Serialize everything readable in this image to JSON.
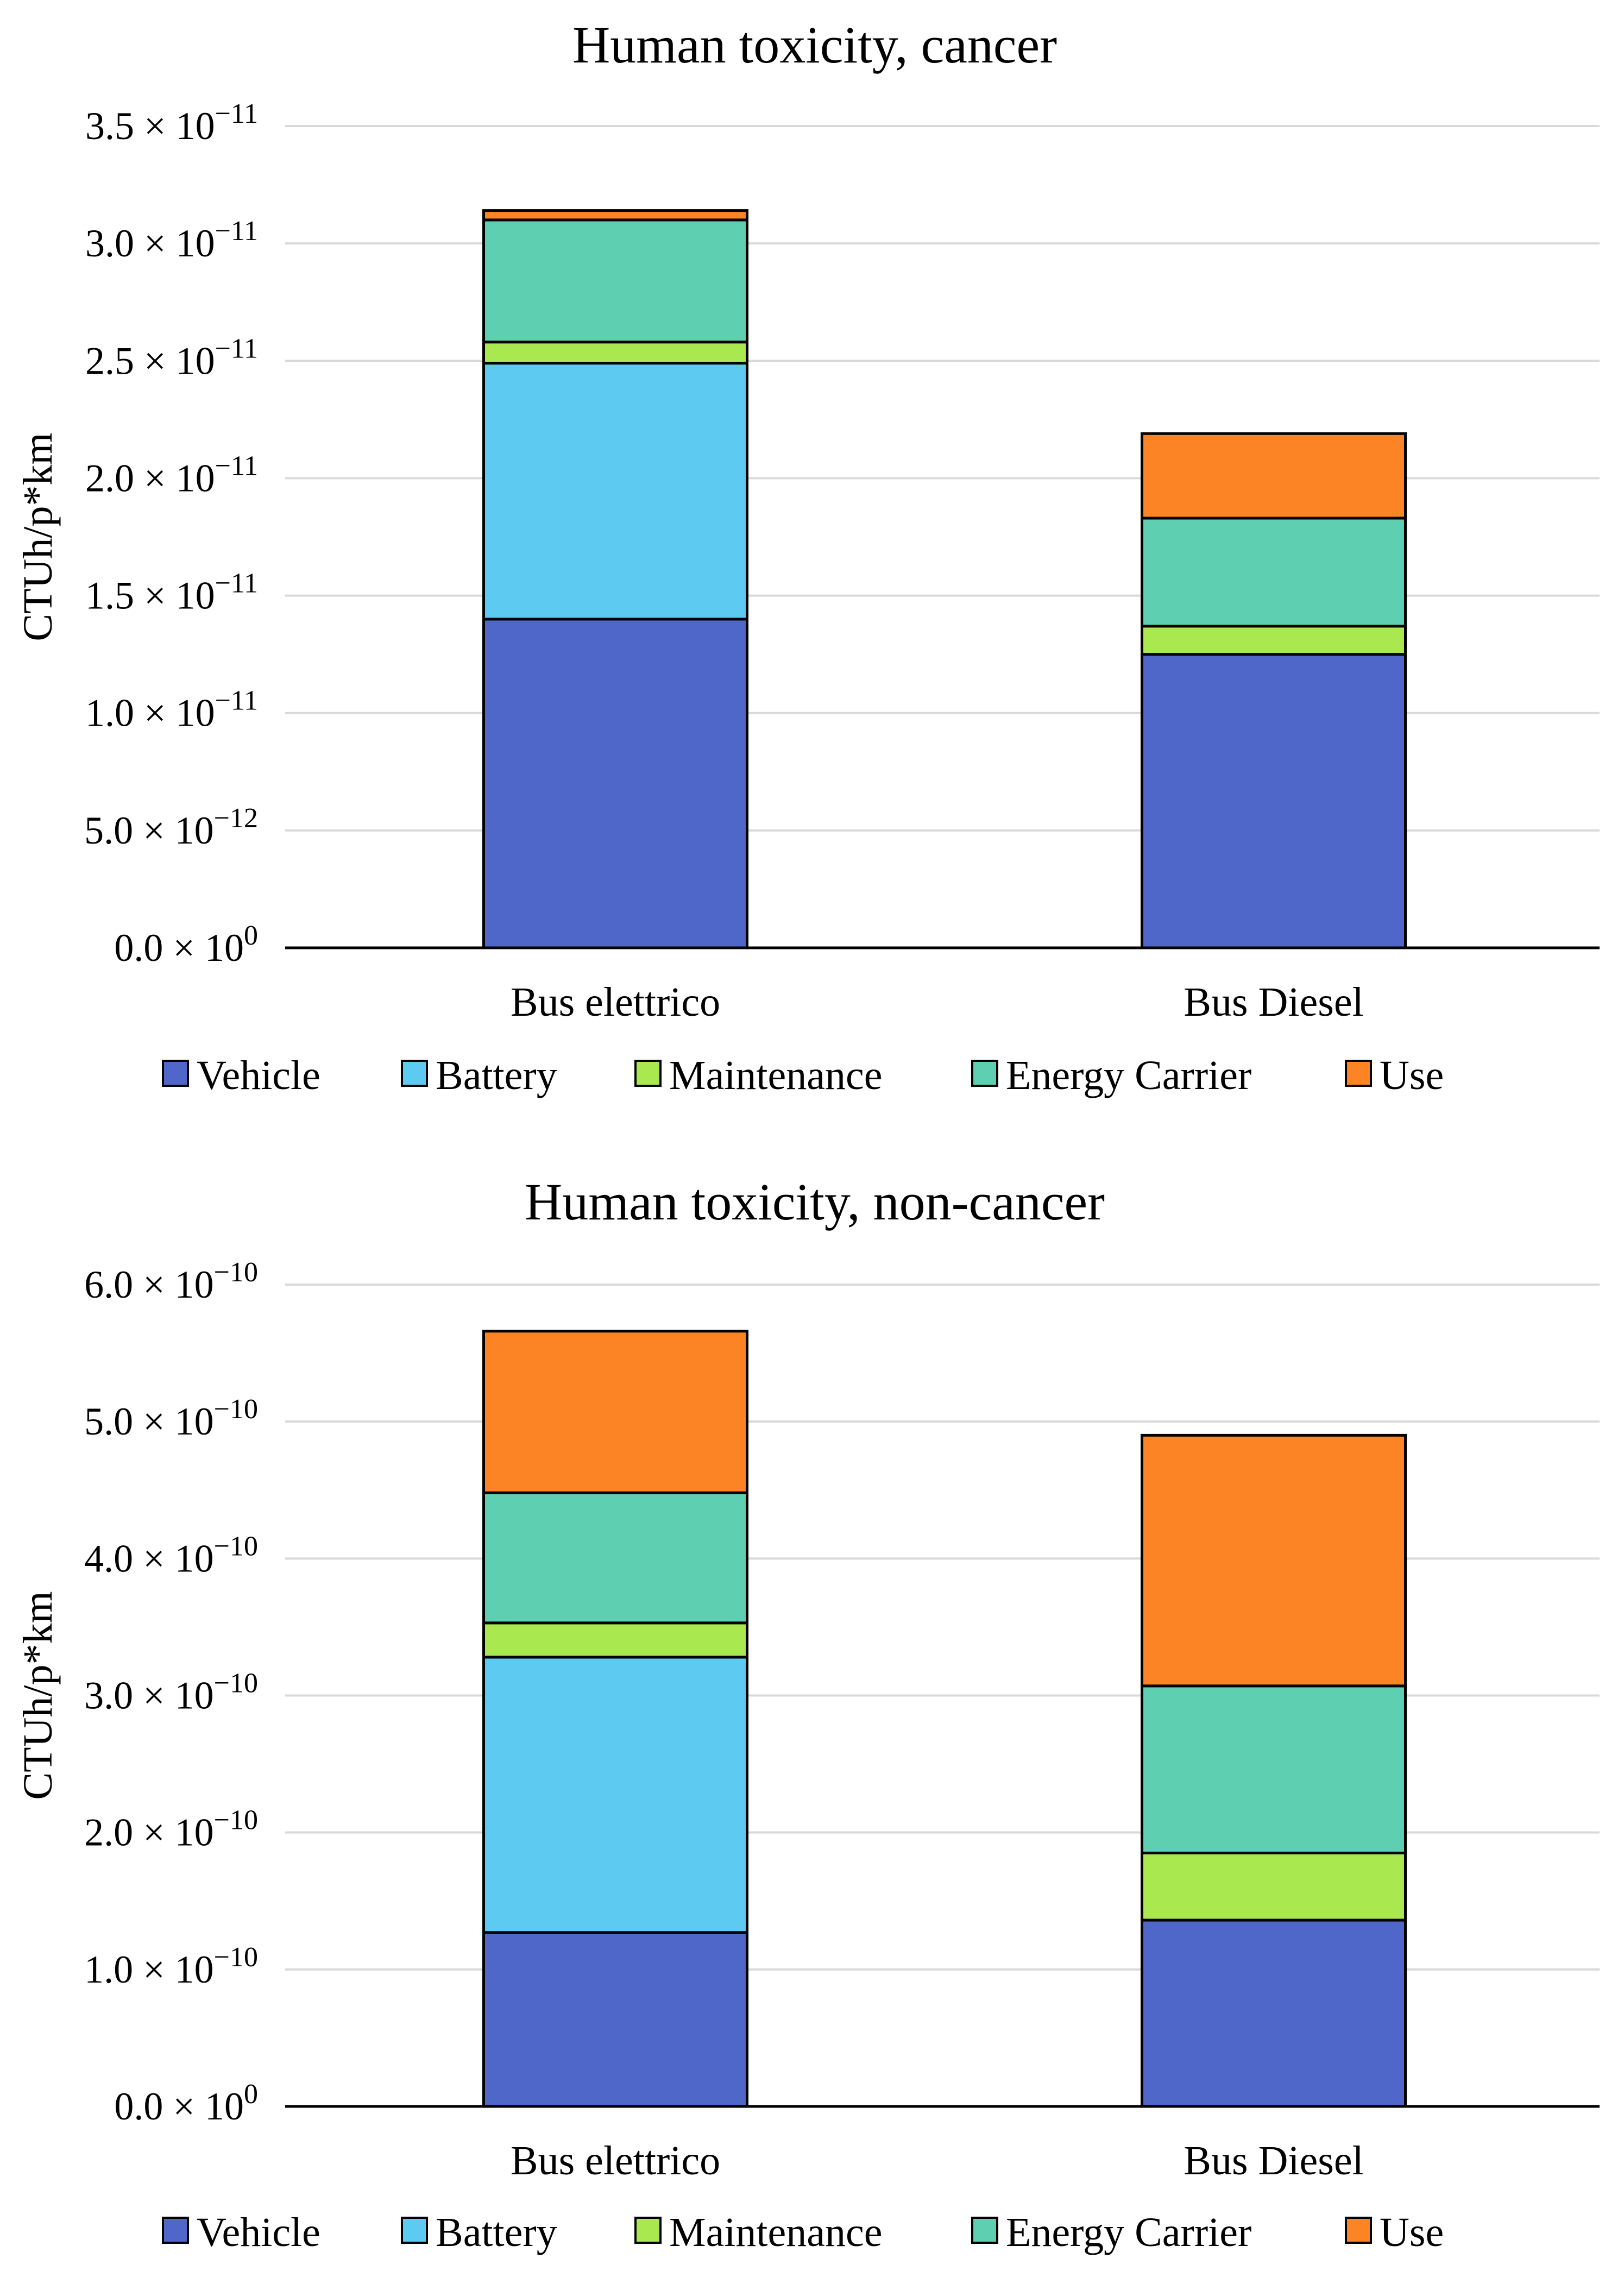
{
  "colors": {
    "Vehicle": "#4f67c8",
    "Battery": "#5dcbf1",
    "Maintenance": "#a9e94f",
    "Energy Carrier": "#5ecfb1",
    "Use": "#fd8425"
  },
  "chart_data": [
    {
      "type": "bar",
      "stacked": true,
      "title": "Human toxicity, cancer",
      "xlabel": "",
      "ylabel": "CTUh/p*km",
      "ylim": [
        0,
        3.5e-11
      ],
      "yticks": [
        0,
        5e-12,
        1e-11,
        1.5e-11,
        2e-11,
        2.5e-11,
        3e-11,
        3.5e-11
      ],
      "ytick_labels": [
        {
          "mantissa": "0.0 × 10",
          "exp": "0"
        },
        {
          "mantissa": "5.0 × 10",
          "exp": "−12"
        },
        {
          "mantissa": "1.0 × 10",
          "exp": "−11"
        },
        {
          "mantissa": "1.5 × 10",
          "exp": "−11"
        },
        {
          "mantissa": "2.0 × 10",
          "exp": "−11"
        },
        {
          "mantissa": "2.5 × 10",
          "exp": "−11"
        },
        {
          "mantissa": "3.0 × 10",
          "exp": "−11"
        },
        {
          "mantissa": "3.5 × 10",
          "exp": "−11"
        }
      ],
      "grid": true,
      "legend": "bottom",
      "categories": [
        "Bus elettrico",
        "Bus Diesel"
      ],
      "series": [
        {
          "name": "Vehicle",
          "values": [
            1.4e-11,
            1.25e-11
          ]
        },
        {
          "name": "Battery",
          "values": [
            1.09e-11,
            0
          ]
        },
        {
          "name": "Maintenance",
          "values": [
            9e-13,
            1.2e-12
          ]
        },
        {
          "name": "Energy Carrier",
          "values": [
            5.2e-12,
            4.6e-12
          ]
        },
        {
          "name": "Use",
          "values": [
            4e-13,
            3.6e-12
          ]
        }
      ]
    },
    {
      "type": "bar",
      "stacked": true,
      "title": "Human toxicity, non-cancer",
      "xlabel": "",
      "ylabel": "CTUh/p*km",
      "ylim": [
        0,
        6e-10
      ],
      "yticks": [
        0,
        1e-10,
        2e-10,
        3e-10,
        4e-10,
        5e-10,
        6e-10
      ],
      "ytick_labels": [
        {
          "mantissa": "0.0 × 10",
          "exp": "0"
        },
        {
          "mantissa": "1.0 × 10",
          "exp": "−10"
        },
        {
          "mantissa": "2.0 × 10",
          "exp": "−10"
        },
        {
          "mantissa": "3.0 × 10",
          "exp": "−10"
        },
        {
          "mantissa": "4.0 × 10",
          "exp": "−10"
        },
        {
          "mantissa": "5.0 × 10",
          "exp": "−10"
        },
        {
          "mantissa": "6.0 × 10",
          "exp": "−10"
        }
      ],
      "grid": true,
      "legend": "bottom",
      "categories": [
        "Bus elettrico",
        "Bus Diesel"
      ],
      "series": [
        {
          "name": "Vehicle",
          "values": [
            1.27e-10,
            1.36e-10
          ]
        },
        {
          "name": "Battery",
          "values": [
            2.01e-10,
            0
          ]
        },
        {
          "name": "Maintenance",
          "values": [
            2.5e-11,
            4.9e-11
          ]
        },
        {
          "name": "Energy Carrier",
          "values": [
            9.5e-11,
            1.22e-10
          ]
        },
        {
          "name": "Use",
          "values": [
            1.18e-10,
            1.83e-10
          ]
        }
      ]
    }
  ]
}
